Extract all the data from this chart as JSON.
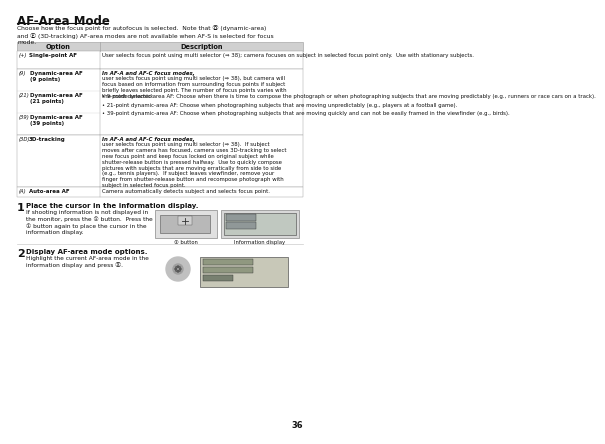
{
  "title": "AF-Area Mode",
  "page_number": "36",
  "intro_text": "Choose how the focus point for autofocus is selected.  Note that Ⓓ (dynamic-area)\nand Ⓔ (3D-tracking) AF-area modes are not available when AF-S is selected for focus\nmode.",
  "table_header_option": "Option",
  "table_header_desc": "Description",
  "row1_icon": "(+)",
  "row1_opt": "Single-point AF",
  "row1_desc_normal": "User selects focus point using multi selector (⇒ 38); camera focuses on subject in selected focus point only.  Use with stationary subjects.",
  "row2_icon": "(9)",
  "row2_opt": "Dynamic-area AF\n(9 points)",
  "row2_desc_bold": "In AF-A and AF-C focus modes,",
  "row2_desc_normal": " user selects focus point using multi selector (⇒ 38), but camera will focus based on information from surrounding focus points if subject briefly leaves selected point. The number of focus points varies with the mode selected:",
  "row2_bullets": [
    "• 9-point dynamic-area AF: Choose when there is time to compose the photograph or when photographing subjects that are moving predictably (e.g., runners or race cars on a track).",
    "• 21-point dynamic-area AF: Choose when photographing subjects that are moving unpredictably (e.g., players at a football game).",
    "• 39-point dynamic-area AF: Choose when photographing subjects that are moving quickly and can not be easily framed in the viewfinder (e.g., birds)."
  ],
  "row3_icon": "(21)",
  "row3_opt": "Dynamic-area AF\n(21 points)",
  "row4_icon": "(39)",
  "row4_opt": "Dynamic-area AF\n(39 points)",
  "row5_icon": "(3D)",
  "row5_opt": "3D-tracking",
  "row5_desc_bold": "In AF-A and AF-C focus modes,",
  "row5_desc_normal": " user selects focus point using multi selector (⇒ 38).  If subject moves after camera has focused, camera uses 3D-tracking to select new focus point and keep focus locked on original subject while shutter-release button is pressed halfway.  Use to quickly compose pictures with subjects that are moving erratically from side to side (e.g., tennis players).  If subject leaves viewfinder, remove your finger from shutter-release button and recompose photograph with subject in selected focus point.",
  "row6_icon": "(A)",
  "row6_opt": "Auto-area AF",
  "row6_desc_normal": "Camera automatically detects subject and selects focus point.",
  "step1_num": "1",
  "step1_title": "Place the cursor in the information display.",
  "step1_text": "If shooting information is not displayed in\nthe monitor, press the ① button.  Press the\n① button again to place the cursor in the\ninformation display.",
  "step1_label1": "① button",
  "step1_label2": "Information display",
  "step2_num": "2",
  "step2_title": "Display AF-area mode options.",
  "step2_text": "Highlight the current AF-area mode in the\ninformation display and press Ⓧ.",
  "bg": "#ffffff",
  "header_bg": "#d0d0d0",
  "border_color": "#999999",
  "light_border": "#cccccc",
  "text_dark": "#111111"
}
